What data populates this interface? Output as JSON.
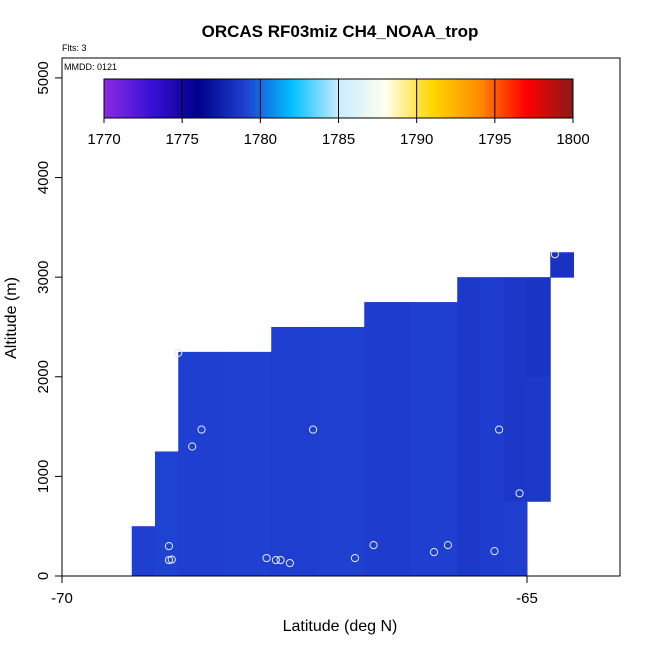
{
  "chart_data": {
    "type": "heatmap",
    "title": "ORCAS RF03miz CH4_NOAA_trop",
    "xlabel": "Latitude (deg N)",
    "ylabel": "Altitude (m)",
    "xlim": [
      -70,
      -64
    ],
    "ylim": [
      0,
      5200
    ],
    "x_ticks": [
      -70,
      -65
    ],
    "x_tick_labels": [
      "-70",
      "-65"
    ],
    "y_ticks": [
      0,
      1000,
      2000,
      3000,
      4000,
      5000
    ],
    "y_tick_labels": [
      "0",
      "1000",
      "2000",
      "3000",
      "4000",
      "5000"
    ],
    "flights_note": "Flts: 3",
    "date_note": "MMDD: 0121",
    "colorbar": {
      "min": 1770,
      "max": 1800,
      "ticks": [
        1770,
        1775,
        1780,
        1785,
        1790,
        1795,
        1800
      ],
      "tick_labels": [
        "1770",
        "1775",
        "1780",
        "1785",
        "1790",
        "1795",
        "1800"
      ],
      "colors": [
        "#8a2be2",
        "#3a10d8",
        "#00008b",
        "#1f3fd0",
        "#00bfff",
        "#c8ecff",
        "#fffff0",
        "#ffd700",
        "#ff8c00",
        "#ff0000",
        "#8b1a1a"
      ]
    },
    "cells": [
      {
        "x0": -69.25,
        "x1": -69.0,
        "y0": 0,
        "y1": 500,
        "value": 1779.0
      },
      {
        "x0": -69.0,
        "x1": -68.75,
        "y0": 0,
        "y1": 1250,
        "value": 1779.1
      },
      {
        "x0": -68.75,
        "x1": -68.25,
        "y0": 0,
        "y1": 2250,
        "value": 1779.0
      },
      {
        "x0": -68.25,
        "x1": -67.75,
        "y0": 0,
        "y1": 2250,
        "value": 1779.05
      },
      {
        "x0": -67.75,
        "x1": -67.25,
        "y0": 0,
        "y1": 2500,
        "value": 1778.95
      },
      {
        "x0": -67.25,
        "x1": -66.75,
        "y0": 0,
        "y1": 2500,
        "value": 1779.05
      },
      {
        "x0": -66.75,
        "x1": -66.25,
        "y0": 0,
        "y1": 2750,
        "value": 1778.9
      },
      {
        "x0": -66.25,
        "x1": -65.75,
        "y0": 0,
        "y1": 2750,
        "value": 1779.0
      },
      {
        "x0": -65.75,
        "x1": -65.5,
        "y0": 0,
        "y1": 3000,
        "value": 1778.7
      },
      {
        "x0": -65.5,
        "x1": -65.25,
        "y0": 0,
        "y1": 3000,
        "value": 1778.9
      },
      {
        "x0": -65.25,
        "x1": -65.0,
        "y0": 750,
        "y1": 3000,
        "value": 1778.6
      },
      {
        "x0": -65.25,
        "x1": -65.0,
        "y0": 0,
        "y1": 750,
        "value": 1779.0
      },
      {
        "x0": -65.0,
        "x1": -64.75,
        "y0": 2000,
        "y1": 3000,
        "value": 1778.5
      },
      {
        "x0": -65.0,
        "x1": -64.75,
        "y0": 750,
        "y1": 2000,
        "value": 1778.7
      },
      {
        "x0": -64.75,
        "x1": -64.5,
        "y0": 3000,
        "y1": 3250,
        "value": 1778.4
      }
    ],
    "observations": [
      {
        "lat": -68.85,
        "alt": 300
      },
      {
        "lat": -68.85,
        "alt": 160
      },
      {
        "lat": -68.82,
        "alt": 165
      },
      {
        "lat": -68.75,
        "alt": 2240
      },
      {
        "lat": -68.6,
        "alt": 1300
      },
      {
        "lat": -68.5,
        "alt": 1470
      },
      {
        "lat": -67.8,
        "alt": 180
      },
      {
        "lat": -67.7,
        "alt": 160
      },
      {
        "lat": -67.65,
        "alt": 160
      },
      {
        "lat": -67.55,
        "alt": 130
      },
      {
        "lat": -67.3,
        "alt": 1470
      },
      {
        "lat": -66.85,
        "alt": 180
      },
      {
        "lat": -66.65,
        "alt": 310
      },
      {
        "lat": -66.0,
        "alt": 240
      },
      {
        "lat": -65.85,
        "alt": 310
      },
      {
        "lat": -65.3,
        "alt": 1470
      },
      {
        "lat": -65.35,
        "alt": 250
      },
      {
        "lat": -65.08,
        "alt": 830
      },
      {
        "lat": -64.7,
        "alt": 3230
      }
    ]
  }
}
